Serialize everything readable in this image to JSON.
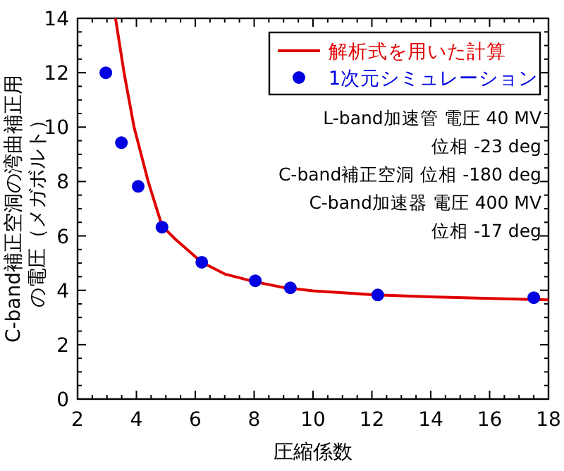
{
  "chart_data": {
    "type": "line",
    "xlabel": "圧縮係数",
    "ylabel": "C-band補正空洞の湾曲補正用の電圧（メガボルト）",
    "xlim": [
      2,
      18
    ],
    "xticks": [
      2,
      4,
      6,
      8,
      10,
      12,
      14,
      16,
      18
    ],
    "ylim": [
      0,
      14
    ],
    "yticks": [
      0,
      2,
      4,
      6,
      8,
      10,
      12,
      14
    ],
    "grid": false,
    "legend": "top right",
    "series": [
      {
        "name": "解析式を用いた計算",
        "type": "line",
        "color": "#e00000",
        "marker": "none",
        "x": [
          3.29,
          3.58,
          3.92,
          4.4,
          4.87,
          5.35,
          6.22,
          7,
          8,
          9,
          10,
          12,
          14,
          16,
          18
        ],
        "values": [
          14,
          12,
          10,
          8,
          6.37,
          5.85,
          5.03,
          4.6,
          4.32,
          4.1,
          3.98,
          3.84,
          3.76,
          3.7,
          3.65
        ]
      },
      {
        "name": "1次元シミュレーション",
        "type": "scatter",
        "color": "#0000e0",
        "marker": "circle",
        "x": [
          2.96,
          3.49,
          4.06,
          4.87,
          6.22,
          8.04,
          9.23,
          12.2,
          17.5
        ],
        "values": [
          12.0,
          9.43,
          7.82,
          6.32,
          5.03,
          4.35,
          4.09,
          3.83,
          3.73
        ]
      }
    ],
    "annotations": [
      "L-band加速管  電圧  40 MV",
      "位相 -23 deg",
      "C-band補正空洞  位相   -180 deg",
      "C-band加速器  電圧  400 MV",
      "位相 -17 deg"
    ]
  }
}
